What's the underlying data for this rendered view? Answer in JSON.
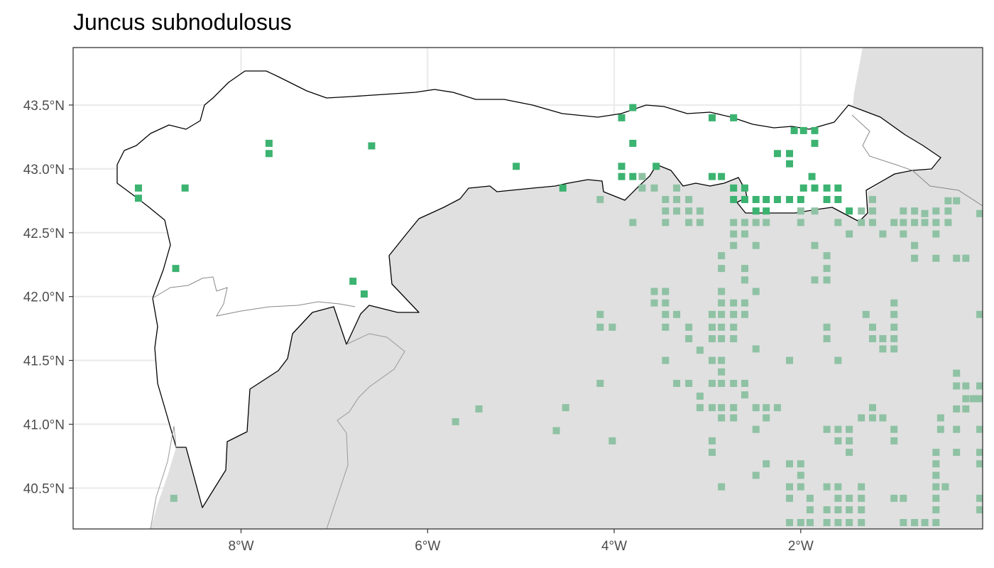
{
  "map": {
    "title": "Juncus subnodulosus",
    "x_axis": {
      "unit": "longitude",
      "range": [
        -9.8,
        -0.05
      ],
      "ticks": [
        {
          "value": -8,
          "label": "8°W"
        },
        {
          "value": -6,
          "label": "6°W"
        },
        {
          "value": -4,
          "label": "4°W"
        },
        {
          "value": -2,
          "label": "2°W"
        }
      ]
    },
    "y_axis": {
      "unit": "latitude",
      "range": [
        40.18,
        43.95
      ],
      "ticks": [
        {
          "value": 43.5,
          "label": "43.5°N"
        },
        {
          "value": 43.0,
          "label": "43.0°N"
        },
        {
          "value": 42.5,
          "label": "42.5°N"
        },
        {
          "value": 42.0,
          "label": "42.0°N"
        },
        {
          "value": 41.5,
          "label": "41.5°N"
        },
        {
          "value": 41.0,
          "label": "41.0°N"
        },
        {
          "value": 40.5,
          "label": "40.5°N"
        }
      ]
    },
    "grid": true,
    "colors": {
      "study_region": "#ffffff",
      "outside_land": "#e0e0e0",
      "presence_inside": "#3cb371",
      "presence_outside": "#8fc2a4",
      "boundary": "#000000",
      "secondary_boundary": "#888888",
      "gridline": "#ebebeb"
    },
    "records_inside": [
      [
        -9.1,
        42.85
      ],
      [
        -9.1,
        42.77
      ],
      [
        -8.6,
        42.85
      ],
      [
        -8.7,
        42.22
      ],
      [
        -7.7,
        43.2
      ],
      [
        -7.7,
        43.12
      ],
      [
        -6.6,
        43.18
      ],
      [
        -5.05,
        43.02
      ],
      [
        -4.55,
        42.85
      ],
      [
        -6.8,
        42.12
      ],
      [
        -6.68,
        42.02
      ],
      [
        -3.8,
        43.48
      ],
      [
        -3.92,
        43.4
      ],
      [
        -3.8,
        43.2
      ],
      [
        -3.92,
        43.02
      ],
      [
        -3.92,
        42.94
      ],
      [
        -3.8,
        42.94
      ],
      [
        -3.55,
        43.02
      ],
      [
        -2.95,
        43.4
      ],
      [
        -2.72,
        43.4
      ],
      [
        -2.95,
        42.94
      ],
      [
        -2.85,
        42.94
      ],
      [
        -2.72,
        42.85
      ],
      [
        -2.6,
        42.85
      ],
      [
        -2.72,
        42.76
      ],
      [
        -2.6,
        42.76
      ],
      [
        -2.48,
        42.76
      ],
      [
        -2.37,
        42.76
      ],
      [
        -2.25,
        42.76
      ],
      [
        -2.12,
        42.76
      ],
      [
        -2.0,
        42.76
      ],
      [
        -2.48,
        42.67
      ],
      [
        -2.37,
        42.67
      ],
      [
        -2.25,
        43.12
      ],
      [
        -2.12,
        43.12
      ],
      [
        -2.12,
        43.04
      ],
      [
        -2.07,
        43.3
      ],
      [
        -1.97,
        43.3
      ],
      [
        -1.85,
        43.3
      ],
      [
        -1.85,
        43.2
      ],
      [
        -1.88,
        42.94
      ],
      [
        -1.97,
        42.85
      ],
      [
        -1.85,
        42.85
      ],
      [
        -1.72,
        42.85
      ],
      [
        -1.6,
        42.85
      ],
      [
        -1.72,
        42.76
      ],
      [
        -1.6,
        42.76
      ],
      [
        -1.48,
        42.67
      ]
    ],
    "records_outside": [
      [
        -8.72,
        40.42
      ],
      [
        -5.7,
        41.02
      ],
      [
        -5.45,
        41.12
      ],
      [
        -4.62,
        40.95
      ],
      [
        -4.52,
        41.13
      ],
      [
        -4.02,
        40.87
      ],
      [
        -4.15,
        41.32
      ],
      [
        -4.15,
        41.76
      ],
      [
        -4.15,
        41.86
      ],
      [
        -4.02,
        41.76
      ],
      [
        -4.15,
        42.76
      ],
      [
        -3.8,
        42.58
      ],
      [
        -3.7,
        42.94
      ],
      [
        -3.7,
        42.85
      ],
      [
        -3.57,
        42.85
      ],
      [
        -3.45,
        42.76
      ],
      [
        -3.45,
        42.67
      ],
      [
        -3.45,
        42.58
      ],
      [
        -3.33,
        42.85
      ],
      [
        -3.33,
        42.76
      ],
      [
        -3.33,
        42.67
      ],
      [
        -3.2,
        42.76
      ],
      [
        -3.2,
        42.67
      ],
      [
        -3.2,
        42.58
      ],
      [
        -3.08,
        42.67
      ],
      [
        -3.08,
        42.58
      ],
      [
        -3.57,
        42.04
      ],
      [
        -3.57,
        41.95
      ],
      [
        -3.45,
        42.04
      ],
      [
        -3.45,
        41.95
      ],
      [
        -3.45,
        41.86
      ],
      [
        -3.33,
        41.86
      ],
      [
        -3.45,
        41.76
      ],
      [
        -3.2,
        41.76
      ],
      [
        -3.2,
        41.67
      ],
      [
        -3.08,
        41.58
      ],
      [
        -3.45,
        41.5
      ],
      [
        -3.33,
        41.32
      ],
      [
        -3.2,
        41.32
      ],
      [
        -3.08,
        41.22
      ],
      [
        -3.08,
        41.13
      ],
      [
        -2.95,
        41.86
      ],
      [
        -2.95,
        41.76
      ],
      [
        -2.95,
        41.67
      ],
      [
        -2.85,
        41.95
      ],
      [
        -2.85,
        41.86
      ],
      [
        -2.85,
        41.76
      ],
      [
        -2.85,
        41.67
      ],
      [
        -2.72,
        41.95
      ],
      [
        -2.72,
        41.86
      ],
      [
        -2.72,
        41.76
      ],
      [
        -2.72,
        41.67
      ],
      [
        -2.6,
        41.86
      ],
      [
        -2.6,
        41.95
      ],
      [
        -2.85,
        42.04
      ],
      [
        -2.85,
        42.32
      ],
      [
        -2.85,
        42.22
      ],
      [
        -2.6,
        42.22
      ],
      [
        -2.6,
        42.13
      ],
      [
        -2.48,
        42.04
      ],
      [
        -2.48,
        42.4
      ],
      [
        -2.48,
        41.59
      ],
      [
        -2.95,
        41.5
      ],
      [
        -2.85,
        41.5
      ],
      [
        -2.85,
        41.41
      ],
      [
        -2.95,
        41.32
      ],
      [
        -2.85,
        41.32
      ],
      [
        -2.72,
        41.32
      ],
      [
        -2.6,
        41.32
      ],
      [
        -2.6,
        41.23
      ],
      [
        -2.48,
        41.13
      ],
      [
        -2.37,
        41.13
      ],
      [
        -2.25,
        41.13
      ],
      [
        -2.37,
        41.05
      ],
      [
        -2.95,
        41.13
      ],
      [
        -2.85,
        41.13
      ],
      [
        -2.72,
        41.13
      ],
      [
        -2.85,
        41.05
      ],
      [
        -2.72,
        41.05
      ],
      [
        -2.48,
        40.96
      ],
      [
        -2.95,
        40.87
      ],
      [
        -2.95,
        40.78
      ],
      [
        -2.37,
        40.69
      ],
      [
        -2.48,
        40.6
      ],
      [
        -2.85,
        40.51
      ],
      [
        -2.12,
        41.5
      ],
      [
        -2.12,
        40.69
      ],
      [
        -2.0,
        40.69
      ],
      [
        -2.0,
        40.6
      ],
      [
        -2.12,
        40.51
      ],
      [
        -2.0,
        40.51
      ],
      [
        -2.12,
        40.42
      ],
      [
        -1.9,
        40.42
      ],
      [
        -2.12,
        40.23
      ],
      [
        -2.0,
        40.23
      ],
      [
        -1.9,
        40.23
      ],
      [
        -1.9,
        40.33
      ],
      [
        -2.72,
        42.58
      ],
      [
        -2.6,
        42.58
      ],
      [
        -2.48,
        42.58
      ],
      [
        -2.37,
        42.58
      ],
      [
        -2.72,
        42.49
      ],
      [
        -2.6,
        42.49
      ],
      [
        -2.72,
        42.4
      ],
      [
        -2.0,
        42.67
      ],
      [
        -1.85,
        42.67
      ],
      [
        -2.0,
        42.58
      ],
      [
        -1.85,
        42.4
      ],
      [
        -1.72,
        42.32
      ],
      [
        -1.72,
        42.22
      ],
      [
        -1.85,
        42.13
      ],
      [
        -1.72,
        42.13
      ],
      [
        -1.72,
        41.76
      ],
      [
        -1.72,
        41.67
      ],
      [
        -1.6,
        41.5
      ],
      [
        -1.6,
        42.58
      ],
      [
        -1.48,
        42.49
      ],
      [
        -1.35,
        42.58
      ],
      [
        -1.35,
        42.67
      ],
      [
        -1.23,
        42.58
      ],
      [
        -1.23,
        42.67
      ],
      [
        -1.23,
        42.76
      ],
      [
        -1.12,
        42.49
      ],
      [
        -1.0,
        42.58
      ],
      [
        -0.9,
        42.67
      ],
      [
        -0.9,
        42.58
      ],
      [
        -0.9,
        42.49
      ],
      [
        -0.78,
        42.67
      ],
      [
        -0.78,
        42.58
      ],
      [
        -0.67,
        42.65
      ],
      [
        -0.67,
        42.58
      ],
      [
        -0.55,
        42.67
      ],
      [
        -0.55,
        42.58
      ],
      [
        -0.55,
        42.49
      ],
      [
        -0.42,
        42.67
      ],
      [
        -0.42,
        42.58
      ],
      [
        -0.42,
        42.75
      ],
      [
        -0.33,
        42.75
      ],
      [
        -0.08,
        42.65
      ],
      [
        -0.78,
        42.4
      ],
      [
        -0.78,
        42.3
      ],
      [
        -0.55,
        42.3
      ],
      [
        -0.33,
        42.3
      ],
      [
        -0.23,
        42.3
      ],
      [
        -0.08,
        41.86
      ],
      [
        -1.3,
        41.86
      ],
      [
        -1.0,
        41.95
      ],
      [
        -1.0,
        41.86
      ],
      [
        -1.0,
        41.76
      ],
      [
        -1.0,
        41.67
      ],
      [
        -1.0,
        41.59
      ],
      [
        -1.12,
        41.67
      ],
      [
        -1.12,
        41.59
      ],
      [
        -1.23,
        41.76
      ],
      [
        -1.23,
        41.67
      ],
      [
        -0.33,
        41.4
      ],
      [
        -0.33,
        41.3
      ],
      [
        -0.23,
        41.3
      ],
      [
        -0.23,
        41.2
      ],
      [
        -0.15,
        41.2
      ],
      [
        -0.08,
        41.2
      ],
      [
        -0.23,
        41.12
      ],
      [
        -0.08,
        41.3
      ],
      [
        -0.5,
        41.05
      ],
      [
        -0.5,
        40.96
      ],
      [
        -0.33,
        41.12
      ],
      [
        -1.72,
        40.96
      ],
      [
        -1.6,
        40.96
      ],
      [
        -1.48,
        40.96
      ],
      [
        -1.48,
        40.87
      ],
      [
        -1.48,
        40.78
      ],
      [
        -1.6,
        40.87
      ],
      [
        -1.35,
        41.05
      ],
      [
        -1.23,
        41.05
      ],
      [
        -1.23,
        41.13
      ],
      [
        -1.12,
        41.05
      ],
      [
        -1.0,
        40.96
      ],
      [
        -1.0,
        40.87
      ],
      [
        -1.72,
        40.51
      ],
      [
        -1.6,
        40.51
      ],
      [
        -1.6,
        40.42
      ],
      [
        -1.6,
        40.33
      ],
      [
        -1.48,
        40.42
      ],
      [
        -1.48,
        40.33
      ],
      [
        -1.35,
        40.51
      ],
      [
        -1.35,
        40.42
      ],
      [
        -1.35,
        40.33
      ],
      [
        -1.72,
        40.23
      ],
      [
        -1.6,
        40.23
      ],
      [
        -1.48,
        40.23
      ],
      [
        -1.35,
        40.23
      ],
      [
        -1.72,
        40.33
      ],
      [
        -1.0,
        40.42
      ],
      [
        -0.9,
        40.42
      ],
      [
        -0.9,
        40.23
      ],
      [
        -0.78,
        40.23
      ],
      [
        -0.67,
        40.23
      ],
      [
        -0.55,
        40.23
      ],
      [
        -0.55,
        40.33
      ],
      [
        -0.55,
        40.42
      ],
      [
        -0.55,
        40.51
      ],
      [
        -0.45,
        40.51
      ],
      [
        -0.55,
        40.6
      ],
      [
        -0.55,
        40.69
      ],
      [
        -0.55,
        40.78
      ],
      [
        -0.33,
        40.78
      ],
      [
        -0.08,
        40.78
      ],
      [
        -0.08,
        40.69
      ],
      [
        -0.08,
        40.33
      ],
      [
        -0.08,
        40.42
      ],
      [
        -0.33,
        40.96
      ],
      [
        -0.08,
        40.96
      ]
    ]
  }
}
